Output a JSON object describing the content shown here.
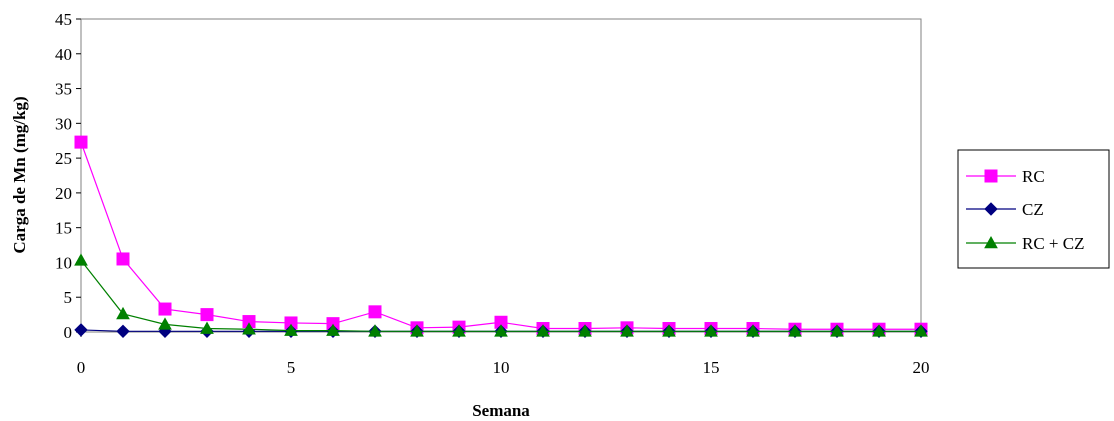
{
  "chart_data": {
    "type": "line",
    "title": "",
    "xlabel": "Semana",
    "ylabel": "Carga de Mn (mg/kg)",
    "xlim": [
      0,
      20
    ],
    "ylim": [
      0,
      45
    ],
    "xticks": [
      0,
      5,
      10,
      15,
      20
    ],
    "yticks": [
      0,
      5,
      10,
      15,
      20,
      25,
      30,
      35,
      40,
      45
    ],
    "grid": false,
    "legend_position": "right",
    "x": [
      0,
      1,
      2,
      3,
      4,
      5,
      6,
      7,
      8,
      9,
      10,
      11,
      12,
      13,
      14,
      15,
      16,
      17,
      18,
      19,
      20
    ],
    "series": [
      {
        "name": "RC",
        "color": "#FF00FF",
        "marker": "square",
        "values": [
          27.3,
          10.5,
          3.3,
          2.5,
          1.5,
          1.3,
          1.2,
          2.9,
          0.6,
          0.7,
          1.4,
          0.5,
          0.5,
          0.6,
          0.5,
          0.5,
          0.5,
          0.4,
          0.4,
          0.4,
          0.4
        ]
      },
      {
        "name": "CZ",
        "color": "#000080",
        "marker": "diamond",
        "values": [
          0.3,
          0.1,
          0.1,
          0.1,
          0.1,
          0.1,
          0.1,
          0.1,
          0.1,
          0.1,
          0.1,
          0.1,
          0.1,
          0.1,
          0.1,
          0.1,
          0.1,
          0.1,
          0.1,
          0.1,
          0.1
        ]
      },
      {
        "name": "RC + CZ",
        "color": "#008000",
        "marker": "triangle",
        "values": [
          10.3,
          2.6,
          1.1,
          0.5,
          0.4,
          0.2,
          0.2,
          0.1,
          0.1,
          0.1,
          0.1,
          0.1,
          0.1,
          0.1,
          0.1,
          0.1,
          0.1,
          0.1,
          0.1,
          0.1,
          0.1
        ]
      }
    ]
  }
}
